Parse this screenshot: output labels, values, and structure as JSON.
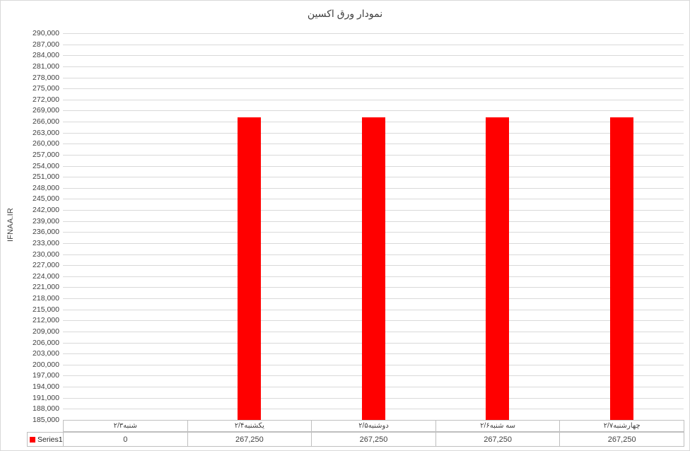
{
  "chart_title": "نمودار ورق اکسین",
  "colors": {
    "bar": "#ff0000",
    "gridline": "#d9d9d9",
    "chart_border": "#d9d9d9",
    "table_border": "#bfbfbf",
    "text": "#404040",
    "background": "#ffffff"
  },
  "chart_data": {
    "type": "bar",
    "title": "نمودار ورق اکسین",
    "xlabel": "",
    "ylabel": "IFNAA.IR",
    "categories": [
      "شنبه۲/۳",
      "یکشنبه۲/۴",
      "دوشنبه۲/۵",
      "سه شنبه۲/۶",
      "چهارشنبه۲/۷"
    ],
    "series": [
      {
        "name": "Series1",
        "color": "#ff0000",
        "values": [
          0,
          267250,
          267250,
          267250,
          267250
        ]
      }
    ],
    "ylim": [
      185000,
      290000
    ],
    "ytick_step": 3000,
    "grid": true,
    "legend_position": "data-table-left",
    "data_table_shown": true
  },
  "data_table": {
    "series_label": "Series1",
    "value_labels": [
      "0",
      "267,250",
      "267,250",
      "267,250",
      "267,250"
    ]
  }
}
